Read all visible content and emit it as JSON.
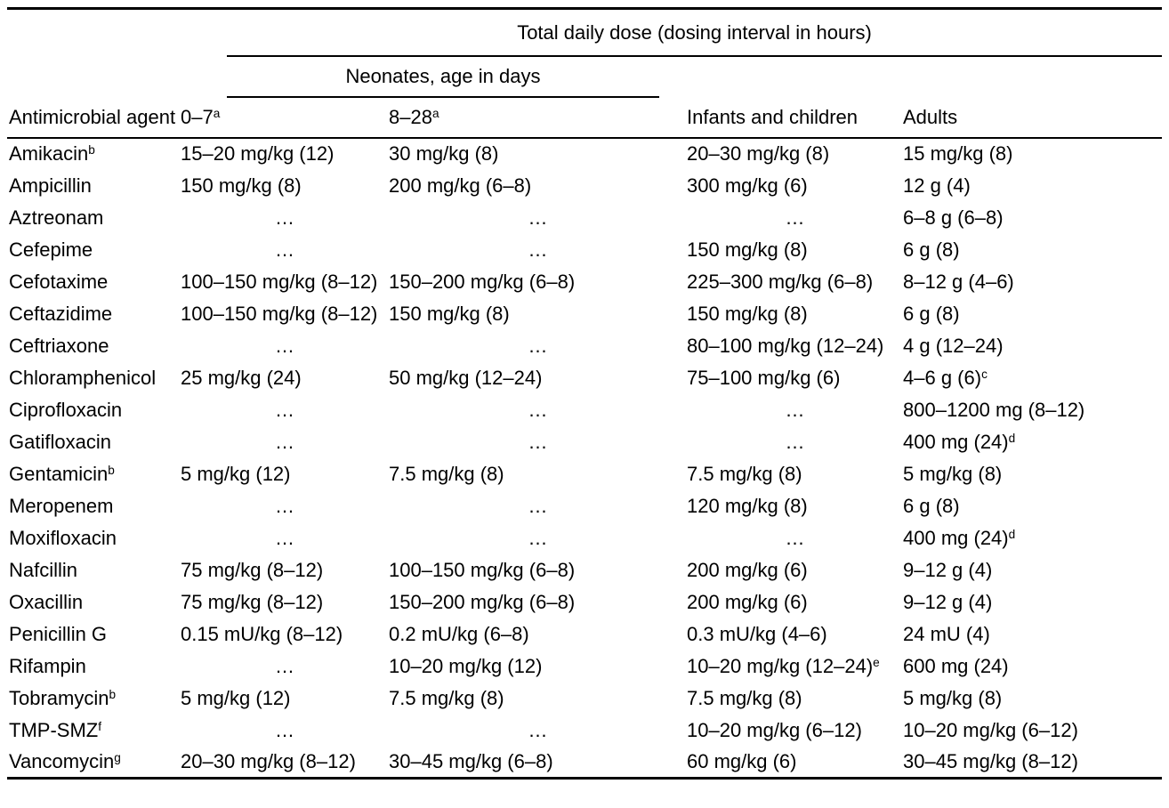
{
  "page": {
    "background": "#ffffff",
    "text_color": "#000000",
    "rule_color": "#000000"
  },
  "table": {
    "spanner_title": "Total daily dose (dosing interval in hours)",
    "neonates_spanner": "Neonates, age in days",
    "ellipsis": "…",
    "columns": {
      "agent": "Antimicrobial agent",
      "neonate_0_7": {
        "label": "0–7",
        "sup": "a"
      },
      "neonate_8_28": {
        "label": "8–28",
        "sup": "a"
      },
      "infants": "Infants and children",
      "adults": "Adults"
    },
    "rows": [
      {
        "agent": "Amikacin",
        "agent_sup": "b",
        "cells": [
          {
            "t": "15–20 mg/kg (12)"
          },
          {
            "t": "30 mg/kg (8)"
          },
          {
            "t": "20–30 mg/kg (8)"
          },
          {
            "t": "15 mg/kg (8)"
          }
        ]
      },
      {
        "agent": "Ampicillin",
        "cells": [
          {
            "t": "150 mg/kg (8)"
          },
          {
            "t": "200 mg/kg (6–8)"
          },
          {
            "t": "300 mg/kg (6)"
          },
          {
            "t": "12 g (4)"
          }
        ]
      },
      {
        "agent": "Aztreonam",
        "cells": [
          {
            "t": "…"
          },
          {
            "t": "…"
          },
          {
            "t": "…"
          },
          {
            "t": "6–8 g (6–8)"
          }
        ]
      },
      {
        "agent": "Cefepime",
        "cells": [
          {
            "t": "…"
          },
          {
            "t": "…"
          },
          {
            "t": "150 mg/kg (8)"
          },
          {
            "t": "6 g (8)"
          }
        ]
      },
      {
        "agent": "Cefotaxime",
        "cells": [
          {
            "t": "100–150 mg/kg (8–12)"
          },
          {
            "t": "150–200 mg/kg (6–8)"
          },
          {
            "t": "225–300 mg/kg (6–8)"
          },
          {
            "t": "8–12 g (4–6)"
          }
        ]
      },
      {
        "agent": "Ceftazidime",
        "cells": [
          {
            "t": "100–150 mg/kg (8–12)"
          },
          {
            "t": "150 mg/kg (8)"
          },
          {
            "t": "150 mg/kg (8)"
          },
          {
            "t": "6 g (8)"
          }
        ]
      },
      {
        "agent": "Ceftriaxone",
        "cells": [
          {
            "t": "…"
          },
          {
            "t": "…"
          },
          {
            "t": "80–100 mg/kg (12–24)"
          },
          {
            "t": "4 g (12–24)"
          }
        ]
      },
      {
        "agent": "Chloramphenicol",
        "cells": [
          {
            "t": "25 mg/kg (24)"
          },
          {
            "t": "50 mg/kg (12–24)"
          },
          {
            "t": "75–100 mg/kg (6)"
          },
          {
            "t": "4–6 g (6)",
            "sup": "c"
          }
        ]
      },
      {
        "agent": "Ciprofloxacin",
        "cells": [
          {
            "t": "…"
          },
          {
            "t": "…"
          },
          {
            "t": "…"
          },
          {
            "t": "800–1200 mg (8–12)"
          }
        ]
      },
      {
        "agent": "Gatifloxacin",
        "cells": [
          {
            "t": "…"
          },
          {
            "t": "…"
          },
          {
            "t": "…"
          },
          {
            "t": "400 mg (24)",
            "sup": "d"
          }
        ]
      },
      {
        "agent": "Gentamicin",
        "agent_sup": "b",
        "cells": [
          {
            "t": "5 mg/kg (12)"
          },
          {
            "t": "7.5 mg/kg (8)"
          },
          {
            "t": "7.5 mg/kg (8)"
          },
          {
            "t": "5 mg/kg (8)"
          }
        ]
      },
      {
        "agent": "Meropenem",
        "cells": [
          {
            "t": "…"
          },
          {
            "t": "…"
          },
          {
            "t": "120 mg/kg (8)"
          },
          {
            "t": "6 g (8)"
          }
        ]
      },
      {
        "agent": "Moxifloxacin",
        "cells": [
          {
            "t": "…"
          },
          {
            "t": "…"
          },
          {
            "t": "…"
          },
          {
            "t": "400 mg (24)",
            "sup": "d"
          }
        ]
      },
      {
        "agent": "Nafcillin",
        "cells": [
          {
            "t": "75 mg/kg (8–12)"
          },
          {
            "t": "100–150 mg/kg (6–8)"
          },
          {
            "t": "200 mg/kg (6)"
          },
          {
            "t": "9–12 g (4)"
          }
        ]
      },
      {
        "agent": "Oxacillin",
        "cells": [
          {
            "t": "75 mg/kg (8–12)"
          },
          {
            "t": "150–200 mg/kg (6–8)"
          },
          {
            "t": "200 mg/kg (6)"
          },
          {
            "t": "9–12 g (4)"
          }
        ]
      },
      {
        "agent": "Penicillin G",
        "cells": [
          {
            "t": "0.15 mU/kg (8–12)"
          },
          {
            "t": "0.2 mU/kg (6–8)"
          },
          {
            "t": "0.3 mU/kg (4–6)"
          },
          {
            "t": "24 mU (4)"
          }
        ]
      },
      {
        "agent": "Rifampin",
        "cells": [
          {
            "t": "…"
          },
          {
            "t": "10–20 mg/kg (12)"
          },
          {
            "t": "10–20 mg/kg (12–24)",
            "sup": "e"
          },
          {
            "t": "600 mg (24)"
          }
        ]
      },
      {
        "agent": "Tobramycin",
        "agent_sup": "b",
        "cells": [
          {
            "t": "5 mg/kg (12)"
          },
          {
            "t": "7.5 mg/kg (8)"
          },
          {
            "t": "7.5 mg/kg (8)"
          },
          {
            "t": "5 mg/kg (8)"
          }
        ]
      },
      {
        "agent": "TMP-SMZ",
        "agent_sup": "f",
        "cells": [
          {
            "t": "…"
          },
          {
            "t": "…"
          },
          {
            "t": "10–20 mg/kg (6–12)"
          },
          {
            "t": "10–20 mg/kg (6–12)"
          }
        ]
      },
      {
        "agent": "Vancomycin",
        "agent_sup": "g",
        "cells": [
          {
            "t": "20–30 mg/kg (8–12)"
          },
          {
            "t": "30–45 mg/kg (6–8)"
          },
          {
            "t": "60 mg/kg (6)"
          },
          {
            "t": "30–45 mg/kg (8–12)"
          }
        ]
      }
    ]
  }
}
